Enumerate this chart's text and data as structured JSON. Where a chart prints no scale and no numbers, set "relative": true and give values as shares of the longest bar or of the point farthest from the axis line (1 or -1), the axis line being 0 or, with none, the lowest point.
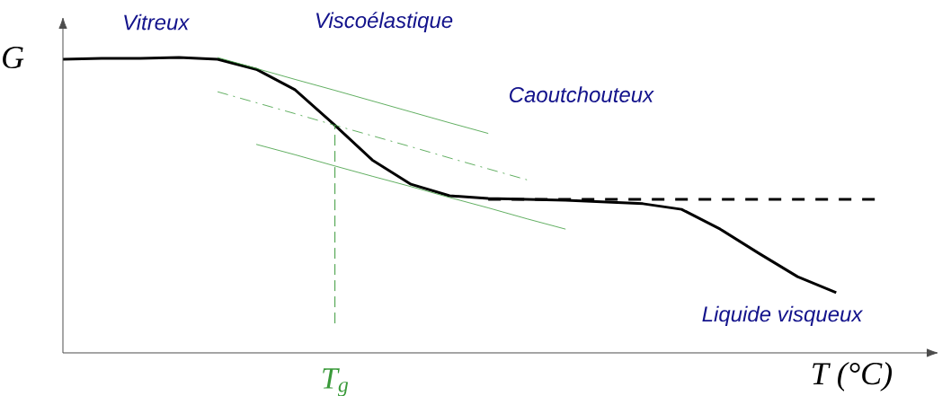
{
  "chart_data": {
    "type": "line",
    "relative": true,
    "xlabel": "T (°C)",
    "ylabel": "G",
    "categories": [
      null,
      null,
      null,
      null,
      null,
      null,
      null,
      null,
      null,
      null,
      null,
      null,
      null,
      null,
      null,
      null,
      null,
      null,
      null,
      null,
      null,
      null
    ],
    "series": [
      {
        "color": "#000000",
        "line_style": "solid",
        "values": [
          0.994,
          0.997,
          0.997,
          1.0,
          0.994,
          0.96,
          0.891,
          0.775,
          0.653,
          0.571,
          0.532,
          0.523,
          0.52,
          0.517,
          0.511,
          0.505,
          0.486,
          0.419,
          0.337,
          0.258,
          0.204,
          null
        ]
      },
      {
        "color": "#000000",
        "line_style": "dashed",
        "values": [
          null,
          null,
          null,
          null,
          null,
          null,
          null,
          null,
          null,
          null,
          null,
          0.52,
          0.52,
          0.52,
          0.52,
          0.52,
          0.52,
          0.52,
          0.52,
          0.52,
          0.52,
          0.52
        ]
      },
      {
        "color": "#3a9a3a",
        "line_style": "solid",
        "values": [
          null,
          null,
          null,
          null,
          1.0,
          0.963,
          0.926,
          0.89,
          0.853,
          0.816,
          0.779,
          0.743,
          null,
          null,
          null,
          null,
          null,
          null,
          null,
          null,
          null,
          null
        ]
      },
      {
        "color": "#3a9a3a",
        "line_style": "dashed",
        "values": [
          null,
          null,
          null,
          null,
          0.884,
          0.847,
          0.81,
          0.772,
          0.735,
          0.698,
          0.66,
          0.623,
          0.586,
          null,
          null,
          null,
          null,
          null,
          null,
          null,
          null,
          null
        ]
      },
      {
        "color": "#3a9a3a",
        "line_style": "solid",
        "values": [
          null,
          null,
          null,
          null,
          null,
          0.706,
          0.671,
          0.634,
          0.598,
          0.563,
          0.526,
          0.491,
          0.454,
          0.419,
          null,
          null,
          null,
          null,
          null,
          null,
          null,
          null
        ]
      }
    ],
    "annotations": [
      "Vitreux",
      "Viscoélastique",
      "Caoutchouteux",
      "Liquide visqueux",
      "T$_{g}$"
    ]
  }
}
